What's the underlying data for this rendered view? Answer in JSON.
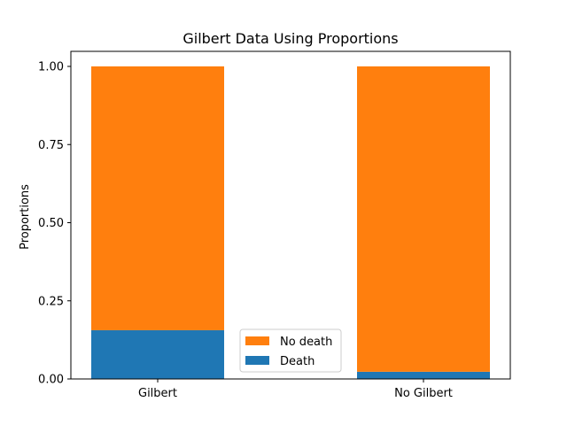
{
  "chart_data": {
    "type": "bar",
    "stacked": true,
    "title": "Gilbert Data Using Proportions",
    "xlabel": "",
    "ylabel": "Proportions",
    "categories": [
      "Gilbert",
      "No Gilbert"
    ],
    "series": [
      {
        "name": "Death",
        "values": [
          0.156,
          0.023
        ],
        "color": "#1f77b4"
      },
      {
        "name": "No death",
        "values": [
          0.844,
          0.977
        ],
        "color": "#ff7f0e"
      }
    ],
    "ylim": [
      0,
      1.0
    ],
    "yticks": [
      0.0,
      0.25,
      0.5,
      0.75,
      1.0
    ],
    "ytick_labels": [
      "0.00",
      "0.25",
      "0.50",
      "0.75",
      "1.00"
    ],
    "legend": {
      "placement": "bottom-center",
      "order": [
        "No death",
        "Death"
      ]
    },
    "grid": false
  }
}
